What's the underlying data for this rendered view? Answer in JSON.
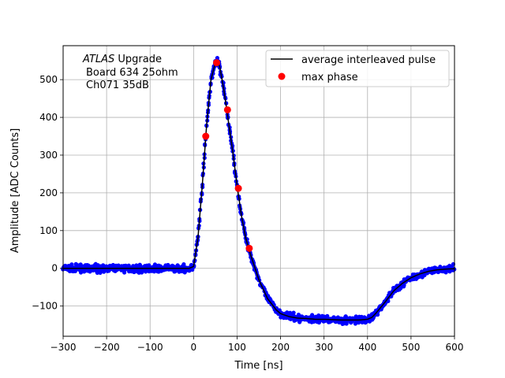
{
  "chart_data": {
    "type": "line",
    "title": "",
    "xlabel": "Time [ns]",
    "ylabel": "Amplitude [ADC Counts]",
    "xlim": [
      -300,
      600
    ],
    "ylim": [
      -180,
      590
    ],
    "xticks": [
      -300,
      -200,
      -100,
      0,
      100,
      200,
      300,
      400,
      500,
      600
    ],
    "yticks": [
      -100,
      0,
      100,
      200,
      300,
      400,
      500
    ],
    "xtick_labels": [
      "−300",
      "−200",
      "−100",
      "0",
      "100",
      "200",
      "300",
      "400",
      "500",
      "600"
    ],
    "ytick_labels": [
      "−100",
      "0",
      "100",
      "200",
      "300",
      "400",
      "500"
    ],
    "grid": true,
    "legend_position": "top-right",
    "annotation": {
      "italic": "ATLAS",
      "line1_rest": " Upgrade",
      "line2": "Board 634 25ohm",
      "line3": "Ch071 35dB"
    },
    "series": [
      {
        "name": "average interleaved pulse",
        "kind": "line",
        "color": "#000000",
        "x": [
          -300,
          -100,
          -10,
          0,
          10,
          20,
          30,
          40,
          50,
          55,
          60,
          70,
          80,
          90,
          100,
          110,
          120,
          130,
          140,
          150,
          160,
          170,
          180,
          190,
          200,
          220,
          240,
          260,
          280,
          300,
          320,
          340,
          360,
          380,
          400,
          410,
          420,
          440,
          460,
          480,
          500,
          520,
          540,
          560,
          580,
          600
        ],
        "y": [
          0,
          0,
          0,
          5,
          80,
          220,
          380,
          500,
          545,
          550,
          535,
          470,
          390,
          310,
          220,
          140,
          80,
          40,
          5,
          -30,
          -55,
          -80,
          -95,
          -110,
          -120,
          -128,
          -132,
          -133,
          -135,
          -135,
          -136,
          -137,
          -137,
          -137,
          -135,
          -130,
          -118,
          -90,
          -60,
          -40,
          -25,
          -15,
          -8,
          -4,
          -2,
          -1
        ]
      },
      {
        "name": "max phase",
        "kind": "points",
        "color": "#ff0000",
        "x": [
          28,
          53,
          78,
          103,
          128
        ],
        "y": [
          350,
          545,
          420,
          212,
          53
        ]
      },
      {
        "name": "",
        "kind": "samples",
        "color": "#0000ff"
      }
    ]
  }
}
